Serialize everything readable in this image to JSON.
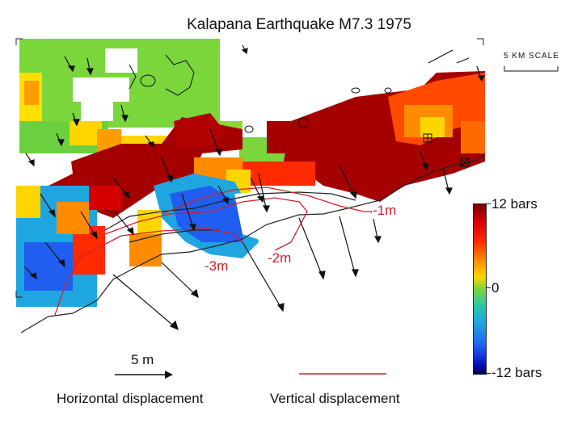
{
  "title": "Kalapana Earthquake M7.3 1975",
  "scale_top": "5 KM SCALE",
  "colorbar": {
    "max_label": "12 bars",
    "mid_label": "0",
    "min_label": "-12 bars",
    "colors": [
      "#7a0000",
      "#d40000",
      "#ff8c00",
      "#ffd500",
      "#7ad63a",
      "#1fa6e0",
      "#0a10c0",
      "#00005a"
    ]
  },
  "contours": {
    "c1": "-1m",
    "c2": "-2m",
    "c3": "-3m"
  },
  "legend": {
    "arrow_scale": "5 m",
    "horizontal": "Horizontal displacement",
    "vertical": "Vertical displacement"
  },
  "style": {
    "contour_color": "#d0202a",
    "arrow_color": "#111111"
  }
}
